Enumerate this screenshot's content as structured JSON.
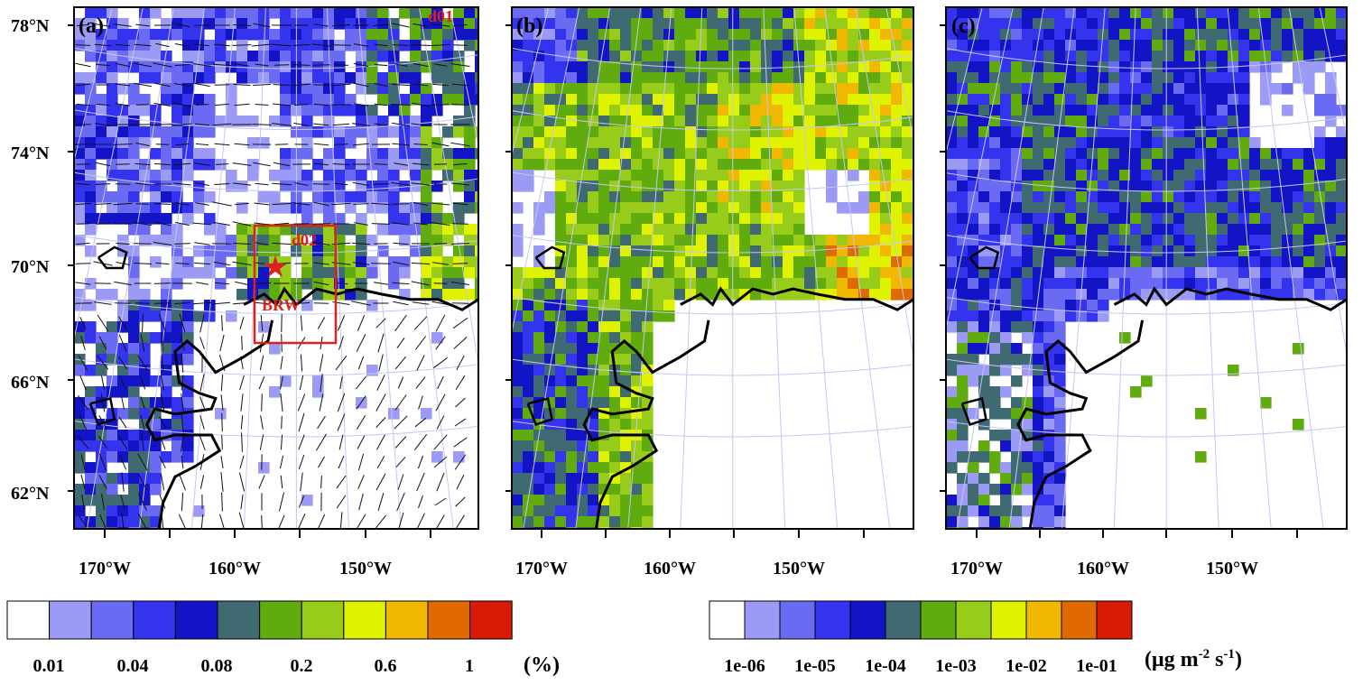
{
  "colors": {
    "scale": [
      "#ffffff",
      "#9b9bf5",
      "#6a6af2",
      "#3434ee",
      "#1414c7",
      "#406a72",
      "#60ac0e",
      "#98cc1a",
      "#dff200",
      "#f0b800",
      "#e06a00",
      "#d81a06"
    ],
    "coast": "#000000",
    "grid": "#c6c6f2",
    "annotation": "#d9231c"
  },
  "panels": [
    {
      "label": "(a)",
      "field": "percent",
      "wind_barbs": true
    },
    {
      "label": "(b)",
      "field": "flux_b"
    },
    {
      "label": "(c)",
      "field": "flux_c"
    }
  ],
  "annotations": {
    "domain1": "d01",
    "domain2": "d02",
    "station": "BRW",
    "station_icon": "star-icon"
  },
  "axes": {
    "lat_ticks": [
      "78°N",
      "74°N",
      "70°N",
      "66°N",
      "62°N"
    ],
    "lon_ticks": [
      "170°W",
      "160°W",
      "150°W"
    ]
  },
  "colorbar_left": {
    "labels": [
      "0.01",
      "0.04",
      "0.08",
      "0.2",
      "0.6",
      "1"
    ],
    "unit": "(%)"
  },
  "colorbar_right": {
    "labels": [
      "1e-06",
      "1e-05",
      "1e-04",
      "1e-03",
      "1e-02",
      "1e-01"
    ],
    "unit_main": "(μg m",
    "unit_exp1": "-2",
    "unit_mid": " s",
    "unit_exp2": "-1",
    "unit_end": ")"
  }
}
